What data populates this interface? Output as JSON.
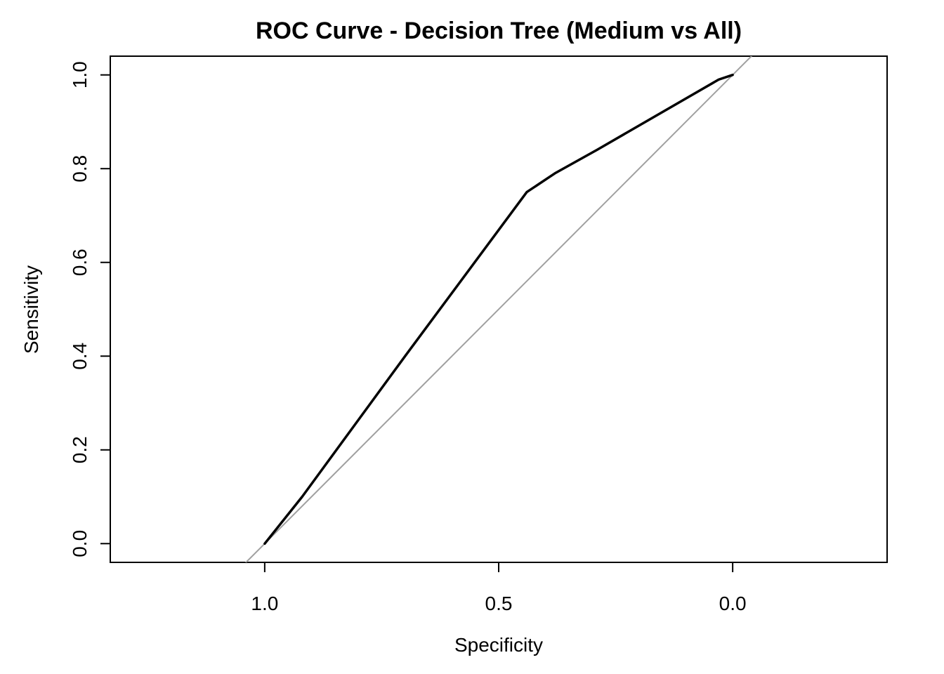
{
  "chart_data": {
    "type": "line",
    "title": "ROC Curve - Decision Tree (Medium vs All)",
    "xlabel": "Specificity",
    "ylabel": "Sensitivity",
    "x_reversed": true,
    "xlim": [
      1.33,
      -0.33
    ],
    "ylim": [
      -0.04,
      1.04
    ],
    "x_ticks": [
      1.0,
      0.5,
      0.0
    ],
    "x_tick_labels": [
      "1.0",
      "0.5",
      "0.0"
    ],
    "y_ticks": [
      0.0,
      0.2,
      0.4,
      0.6,
      0.8,
      1.0
    ],
    "y_tick_labels": [
      "0.0",
      "0.2",
      "0.4",
      "0.6",
      "0.8",
      "1.0"
    ],
    "grid": false,
    "series": [
      {
        "color": "#000000",
        "x": [
          1.0,
          0.92,
          0.7,
          0.44,
          0.38,
          0.29,
          0.03,
          0.0
        ],
        "y": [
          0.0,
          0.1,
          0.4,
          0.75,
          0.79,
          0.84,
          0.99,
          1.0
        ]
      }
    ],
    "reference_line": {
      "color": "#a0a0a0",
      "x": [
        1.0,
        0.0
      ],
      "y": [
        0.0,
        1.0
      ]
    }
  }
}
